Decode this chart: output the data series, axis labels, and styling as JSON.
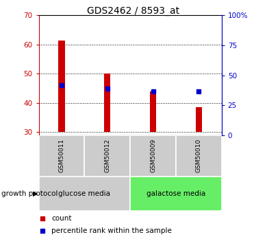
{
  "title": "GDS2462 / 8593_at",
  "samples": [
    "GSM50011",
    "GSM50012",
    "GSM50009",
    "GSM50010"
  ],
  "count_values": [
    61.5,
    50.0,
    44.0,
    38.5
  ],
  "percentile_values": [
    46.0,
    45.0,
    44.0,
    44.0
  ],
  "ylim_left": [
    29,
    70
  ],
  "ylim_right": [
    0,
    100
  ],
  "yticks_left": [
    30,
    40,
    50,
    60,
    70
  ],
  "yticks_right": [
    0,
    25,
    50,
    75,
    100
  ],
  "bar_bottom": 30,
  "bar_color": "#cc0000",
  "marker_color": "#0000cc",
  "groups": [
    {
      "label": "glucose media",
      "samples": [
        "GSM50011",
        "GSM50012"
      ],
      "color": "#cccccc"
    },
    {
      "label": "galactose media",
      "samples": [
        "GSM50009",
        "GSM50010"
      ],
      "color": "#66ee66"
    }
  ],
  "group_label": "growth protocol",
  "legend_count_label": "count",
  "legend_percentile_label": "percentile rank within the sample",
  "title_fontsize": 10,
  "tick_fontsize": 7.5,
  "sample_fontsize": 6.5,
  "group_label_fontsize": 7.5,
  "legend_fontsize": 7.5,
  "bar_width": 0.14,
  "left_tick_color": "#cc0000",
  "right_tick_color": "#0000cc",
  "bg_color": "#ffffff",
  "sample_box_color": "#cccccc",
  "marker_size": 5
}
